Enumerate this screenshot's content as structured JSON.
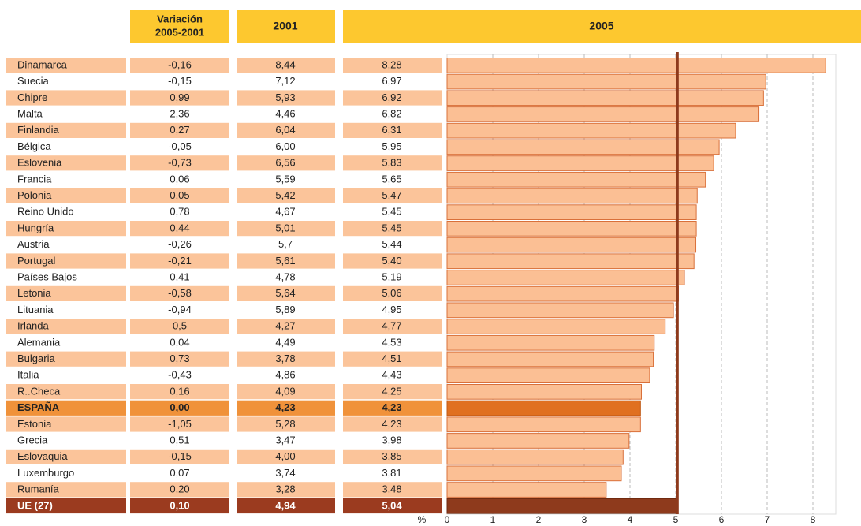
{
  "chart_data": {
    "type": "bar",
    "headers": {
      "variation": [
        "Variación",
        "2005-2001"
      ],
      "y2001": "2001",
      "y2005": "2005"
    },
    "categories": [
      "Dinamarca",
      "Suecia",
      "Chipre",
      "Malta",
      "Finlandia",
      "Bélgica",
      "Eslovenia",
      "Francia",
      "Polonia",
      "Reino Unido",
      "Hungría",
      "Austria",
      "Portugal",
      "Países Bajos",
      "Letonia",
      "Lituania",
      "Irlanda",
      "Alemania",
      "Bulgaria",
      "Italia",
      "R..Checa",
      "ESPAÑA",
      "Estonia",
      "Grecia",
      "Eslovaquia",
      "Luxemburgo",
      "Rumanía",
      "UE (27)"
    ],
    "variation": [
      "-0,16",
      "-0,15",
      "0,99",
      "2,36",
      "0,27",
      "-0,05",
      "-0,73",
      "0,06",
      "0,05",
      "0,78",
      "0,44",
      "-0,26",
      "-0,21",
      "0,41",
      "-0,58",
      "-0,94",
      "0,5",
      "0,04",
      "0,73",
      "-0,43",
      "0,16",
      "0,00",
      "-1,05",
      "0,51",
      "-0,15",
      "0,07",
      "0,20",
      "0,10"
    ],
    "y2001": [
      "8,44",
      "7,12",
      "5,93",
      "4,46",
      "6,04",
      "6,00",
      "6,56",
      "5,59",
      "5,42",
      "4,67",
      "5,01",
      "5,7",
      "5,61",
      "4,78",
      "5,64",
      "5,89",
      "4,27",
      "4,49",
      "3,78",
      "4,86",
      "4,09",
      "4,23",
      "5,28",
      "3,47",
      "4,00",
      "3,74",
      "3,28",
      "4,94"
    ],
    "series": [
      {
        "name": "2005",
        "color": "#fbbf94",
        "values": [
          8.28,
          6.97,
          6.92,
          6.82,
          6.31,
          5.95,
          5.83,
          5.65,
          5.47,
          5.45,
          5.45,
          5.44,
          5.4,
          5.19,
          5.06,
          4.95,
          4.77,
          4.53,
          4.51,
          4.43,
          4.25,
          4.23,
          4.23,
          3.98,
          3.85,
          3.81,
          3.48,
          5.04
        ],
        "value_labels": [
          "8,28",
          "6,97",
          "6,92",
          "6,82",
          "6,31",
          "5,95",
          "5,83",
          "5,65",
          "5,47",
          "5,45",
          "5,45",
          "5,44",
          "5,40",
          "5,19",
          "5,06",
          "4,95",
          "4,77",
          "4,53",
          "4,51",
          "4,43",
          "4,25",
          "4,23",
          "4,23",
          "3,98",
          "3,85",
          "3,81",
          "3,48",
          "5,04"
        ]
      }
    ],
    "xlabel": "%",
    "xlim": [
      0,
      8.5
    ],
    "xticks": [
      0,
      1,
      2,
      3,
      4,
      5,
      6,
      7,
      8
    ],
    "grid": true
  }
}
